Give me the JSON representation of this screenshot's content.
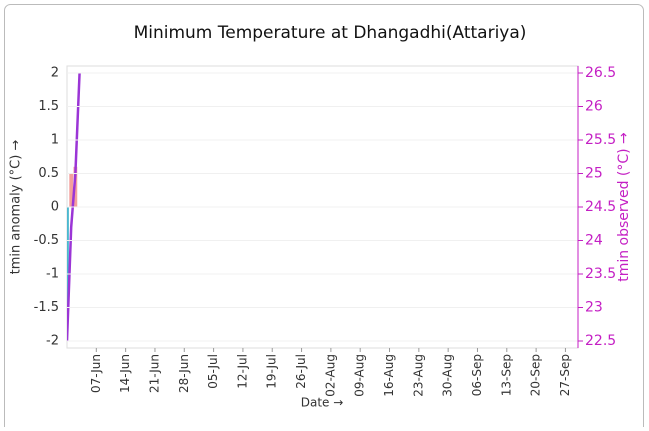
{
  "chart_data": {
    "type": "bar-line",
    "title": "Minimum Temperature at Dhangadhi(Attariya)",
    "x_label": "Date →",
    "y_label": "tmin anomaly (°C) →",
    "y2_label": "tmin observed (°C) →",
    "xlim": [
      "31-May",
      "30-Sep"
    ],
    "xticks": [
      "07-Jun",
      "14-Jun",
      "21-Jun",
      "28-Jun",
      "05-Jul",
      "12-Jul",
      "19-Jul",
      "26-Jul",
      "02-Aug",
      "09-Aug",
      "16-Aug",
      "23-Aug",
      "30-Aug",
      "06-Sep",
      "13-Sep",
      "20-Sep",
      "27-Sep"
    ],
    "ylim": [
      -2,
      2
    ],
    "yticks": [
      -2,
      -1.5,
      -1,
      -0.5,
      0,
      0.5,
      1,
      1.5,
      2
    ],
    "y2lim": [
      22.5,
      26.5
    ],
    "y2ticks": [
      22.5,
      23,
      23.5,
      24,
      24.5,
      25,
      25.5,
      26,
      26.5
    ],
    "grid": true,
    "series": [
      {
        "name": "tmin anomaly",
        "type": "bar",
        "positive_color": "#f4a09c",
        "negative_color": "#4bb8cf",
        "x": [
          "31-May",
          "01-Jun",
          "02-Jun"
        ],
        "values": [
          -1.6,
          0.5,
          0.6
        ]
      },
      {
        "name": "tmin observed",
        "type": "line",
        "axis": "y2",
        "color": "#9b35d6",
        "x": [
          "31-May",
          "01-Jun",
          "02-Jun",
          "03-Jun"
        ],
        "values": [
          22.5,
          24.2,
          25.0,
          26.5
        ]
      }
    ]
  }
}
